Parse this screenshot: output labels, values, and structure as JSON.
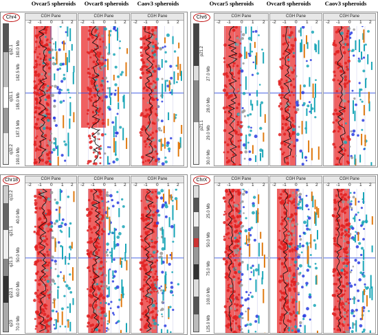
{
  "figure": {
    "sample_headers": [
      "Ovcar5 spheroids",
      "Ovcar8 spheroids",
      "Caov3 spheroids"
    ],
    "pane_title": "CGH Pane",
    "tick_labels": [
      "-2",
      "-1",
      "0",
      "1",
      "2"
    ],
    "panels": [
      {
        "chromosome": "Chr4",
        "bands": [
          "q31.1",
          "q32.1",
          "q32.2"
        ],
        "mb_labels": [
          "180.0 Mb",
          "182.5 Mb",
          "185.0 Mb",
          "187.5 Mb",
          "190.0 Mb"
        ]
      },
      {
        "chromosome": "Chr6",
        "bands": [
          "p21.2",
          "p21.1"
        ],
        "mb_labels": [
          "27.0 Mb",
          "28.0 Mb",
          "29.0 Mb",
          "30.0 Mb"
        ]
      },
      {
        "chromosome": "Chr18",
        "bands": [
          "q12.2",
          "q21.1",
          "q21.3",
          "q22.1",
          "q23"
        ],
        "mb_labels": [
          "40.0 Mb",
          "50.0 Mb",
          "60.0 Mb",
          "70.0 Mb"
        ]
      },
      {
        "chromosome": "ChrX",
        "bands": [],
        "mb_labels": [
          "25.0 Mb",
          "50.0 Mb",
          "75.0 Mb",
          "100.0 Mb",
          "125.0 Mb"
        ]
      }
    ]
  },
  "colors": {
    "amplified_band": "#ec4545",
    "gain_point": "#e02020",
    "loss_point": "#2a3de0",
    "neutral_point": "#9a9a9a",
    "gene_label_cyan": "#1aa6b7",
    "gene_label_orange": "#e07a10",
    "chr_circle": "#c01010"
  }
}
